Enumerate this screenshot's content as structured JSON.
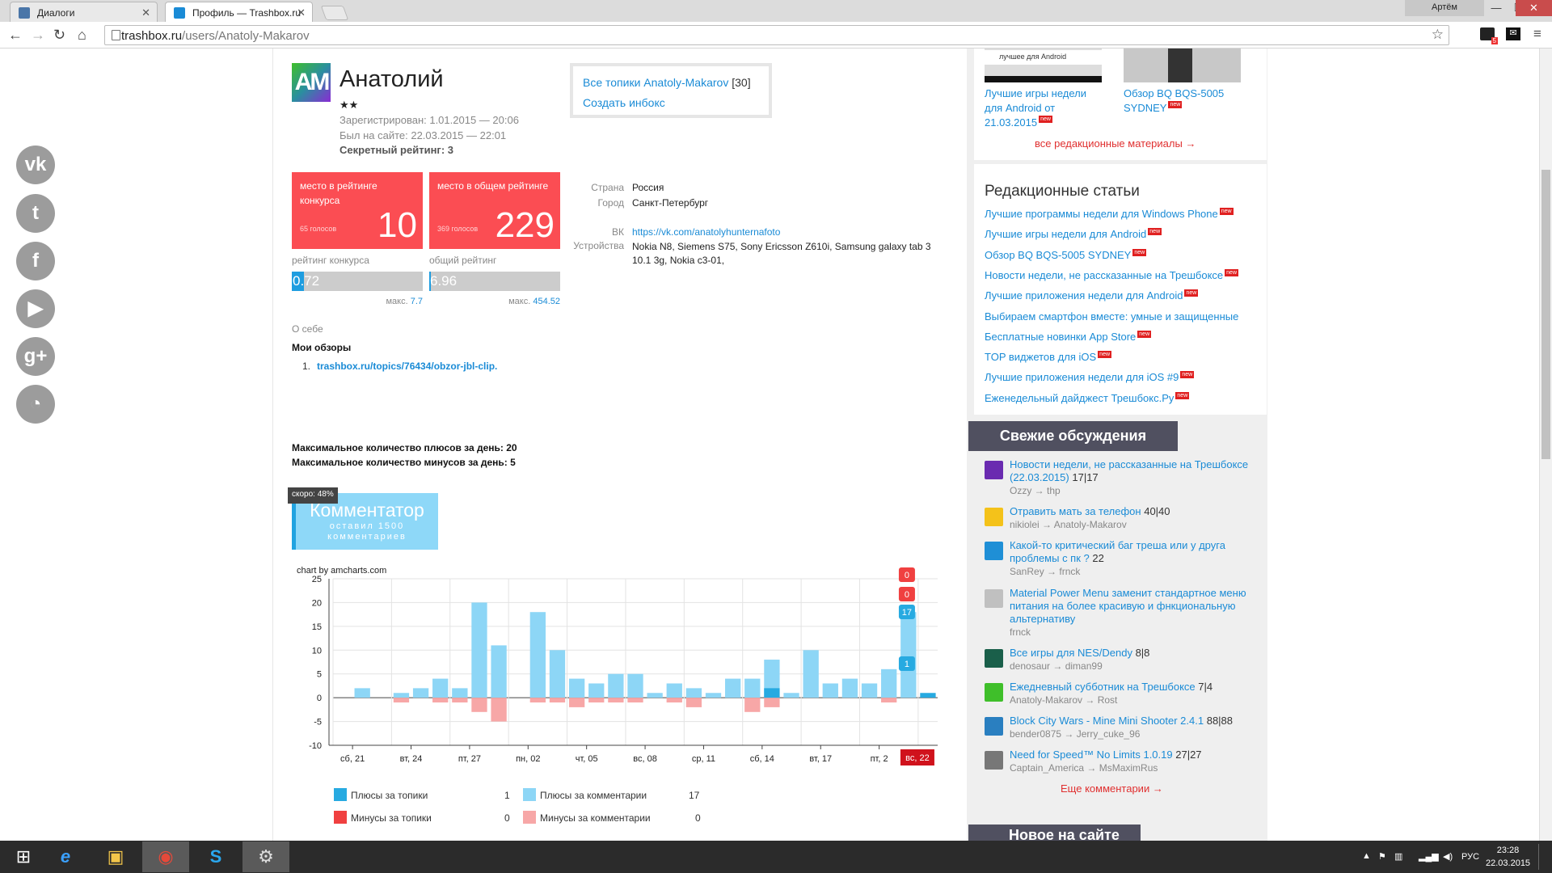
{
  "browser": {
    "tabs": [
      {
        "label": "Диалоги",
        "active": false
      },
      {
        "label": "Профиль — Trashbox.ru",
        "active": true
      }
    ],
    "user_button": "Артём",
    "url_host": "trashbox.ru",
    "url_path": "/users/Anatoly-Makarov",
    "window_buttons": [
      "—",
      "❐",
      "✕"
    ],
    "toolbar_badge": "5"
  },
  "profile": {
    "avatar_text": "AM",
    "name": "Анатолий",
    "stars": "★★",
    "registered": "Зарегистрирован: 1.01.2015 — 20:06",
    "last_seen": "Был на сайте: 22.03.2015 — 22:01",
    "secret_rating": "Секретный рейтинг: 3",
    "all_topics_link": "Все топики Anatoly-Makarov",
    "all_topics_count": "[30]",
    "create_inbox": "Создать инбокс",
    "rank_contest": {
      "title": "место в рейтинге конкурса",
      "value": "10",
      "votes": "65 голосов"
    },
    "rank_total": {
      "title": "место в общем рейтинге",
      "value": "229",
      "votes": "369 голосов"
    },
    "rating_contest": {
      "label": "рейтинг конкурса",
      "value": "0.72",
      "max_label": "макс.",
      "max": "7.7",
      "fraction": 0.094
    },
    "rating_total": {
      "label": "общий рейтинг",
      "value": "6.96",
      "max_label": "макс.",
      "max": "454.52",
      "fraction": 0.015
    },
    "info": [
      {
        "label": "Страна",
        "value": "Россия"
      },
      {
        "label": "Город",
        "value": "Санкт-Петербург"
      },
      {
        "label": "ВК",
        "value": "https://vk.com/anatolyhunternafoto"
      },
      {
        "label": "Устройства",
        "value": "Nokia N8, Siemens S75, Sony Ericsson Z610i, Samsung galaxy tab 3 10.1 3g, Nokia c3-01,"
      }
    ],
    "about_label": "О себе",
    "reviews_label": "Мои обзоры",
    "review_number": "1.",
    "review_link": "trashbox.ru/topics/76434/obzor-jbl-clip.",
    "max_plus": "Максимальное количество плюсов за день: 20",
    "max_minus": "Максимальное количество минусов за день: 5",
    "achievement": {
      "tip": "скоро: 48%",
      "title": "Комментатор",
      "subtitle": "оставил 1500 комментариев",
      "progress": 0.48
    }
  },
  "social_icons": [
    "vk-icon",
    "twitter-icon",
    "facebook-icon",
    "youtube-icon",
    "google-plus-icon",
    "rss-icon"
  ],
  "chart_data": {
    "type": "bar",
    "credit": "chart by amcharts.com",
    "ylim": [
      -10,
      25
    ],
    "yticks": [
      -10,
      -5,
      0,
      5,
      10,
      15,
      20,
      25
    ],
    "xtick_labels": [
      {
        "i": 1,
        "label": "сб, 21"
      },
      {
        "i": 4,
        "label": "вт, 24"
      },
      {
        "i": 7,
        "label": "пт, 27"
      },
      {
        "i": 10,
        "label": "пн, 02"
      },
      {
        "i": 13,
        "label": "чт, 05"
      },
      {
        "i": 16,
        "label": "вс, 08"
      },
      {
        "i": 19,
        "label": "ср, 11"
      },
      {
        "i": 22,
        "label": "сб, 14"
      },
      {
        "i": 25,
        "label": "вт, 17"
      },
      {
        "i": 28,
        "label": "пт, 2"
      }
    ],
    "last_label": "вс, 22",
    "series": [
      {
        "name": "Плюсы за топики",
        "color": "#27aae1",
        "total": "1",
        "values": [
          0,
          0,
          0,
          0,
          0,
          0,
          0,
          0,
          0,
          0,
          0,
          0,
          0,
          0,
          0,
          0,
          0,
          0,
          0,
          0,
          0,
          0,
          2,
          0,
          0,
          0,
          0,
          0,
          0,
          0,
          1
        ]
      },
      {
        "name": "Плюсы за комментарии",
        "color": "#8dd6f6",
        "total": "17",
        "values": [
          0,
          2,
          0,
          1,
          2,
          4,
          2,
          20,
          11,
          0,
          18,
          10,
          4,
          3,
          5,
          5,
          1,
          3,
          2,
          1,
          4,
          4,
          8,
          1,
          10,
          3,
          4,
          3,
          6,
          18,
          0
        ]
      },
      {
        "name": "Минусы за топики",
        "color": "#f04040",
        "total": "0",
        "values": [
          0,
          0,
          0,
          0,
          0,
          0,
          0,
          0,
          0,
          0,
          0,
          0,
          0,
          0,
          0,
          0,
          0,
          0,
          0,
          0,
          0,
          0,
          0,
          0,
          0,
          0,
          0,
          0,
          0,
          0,
          0
        ]
      },
      {
        "name": "Минусы за комментарии",
        "color": "#f7a7a7",
        "total": "0",
        "values": [
          0,
          0,
          0,
          -1,
          0,
          -1,
          -1,
          -3,
          -5,
          0,
          -1,
          -1,
          -2,
          -1,
          -1,
          -1,
          0,
          -1,
          -2,
          0,
          0,
          -3,
          -2,
          0,
          0,
          0,
          0,
          0,
          -1,
          0,
          0
        ]
      }
    ],
    "balloons": [
      "0",
      "0",
      "17",
      "1"
    ]
  },
  "sidebar": {
    "top_items": [
      {
        "title": "Лучшие игры недели для Android от 21.03.2015",
        "badge": "new",
        "tag": "лучшее для  Android"
      },
      {
        "title": "Обзор BQ BQS-5005 SYDNEY",
        "badge": "new"
      }
    ],
    "all_materials": "все редакционные материалы →",
    "editorial_title": "Редакционные статьи",
    "editorial": [
      {
        "title": "Лучшие программы недели для Windows Phone",
        "new": true
      },
      {
        "title": "Лучшие игры недели для Android",
        "new": true
      },
      {
        "title": "Обзор BQ BQS-5005 SYDNEY",
        "new": true
      },
      {
        "title": "Новости недели, не рассказанные на Трешбоксе",
        "new": true
      },
      {
        "title": "Лучшие приложения недели для Android",
        "new": true
      },
      {
        "title": "Выбираем смартфон вместе: умные и защищенные",
        "new": false
      },
      {
        "title": "Бесплатные новинки App Store",
        "new": true
      },
      {
        "title": "TOP виджетов для iOS",
        "new": true
      },
      {
        "title": "Лучшие приложения недели для iOS #9",
        "new": true
      },
      {
        "title": "Еженедельный дайджест Трешбокс.Ру",
        "new": true
      }
    ],
    "new_badge": "new",
    "fresh_title": "Свежие обсуждения",
    "discussions": [
      {
        "title": "Новости недели, не рассказанные на Трешбоксе (22.03.2015)",
        "count": "17|17",
        "who": "Ozzy → thp",
        "color": "#6a2bb0"
      },
      {
        "title": "Отравить мать за телефон",
        "count": "40|40",
        "who": "nikiolei → Anatoly-Makarov",
        "color": "#f4c21a"
      },
      {
        "title": "Какой-то критический баг треша или у друга проблемы с пк ?",
        "count": "22",
        "who": "SanRey → frnck",
        "color": "#1f8fd6"
      },
      {
        "title": "Material Power Menu заменит стандартное меню питания на более красивую и фнкциональную альтернативу",
        "count": "",
        "who": "frnck",
        "color": "#c0c0c0"
      },
      {
        "title": "Все игры для NES/Dendy",
        "count": "8|8",
        "who": "denosaur → diman99",
        "color": "#1a5f4a"
      },
      {
        "title": "Ежедневный субботник на Трешбоксе",
        "count": "7|4",
        "who": "Anatoly-Makarov → Rost",
        "color": "#3fbf2a"
      },
      {
        "title": "Block City Wars - Mine Mini Shooter 2.4.1",
        "count": "88|88",
        "who": "bender0875 → Jerry_cuke_96",
        "color": "#2a7fc0"
      },
      {
        "title": "Need for Speed™ No Limits 1.0.19",
        "count": "27|27",
        "who": "Captain_America → MsMaximRus",
        "color": "#777"
      }
    ],
    "more_comments": "Еще комментарии →",
    "new_on_site": "Новое на сайте"
  },
  "taskbar": {
    "apps": [
      "windows-start-icon",
      "ie-icon",
      "file-explorer-icon",
      "chrome-icon",
      "skype-icon",
      "steam-icon"
    ],
    "lang": "РУС",
    "time": "23:28",
    "date": "22.03.2015"
  }
}
